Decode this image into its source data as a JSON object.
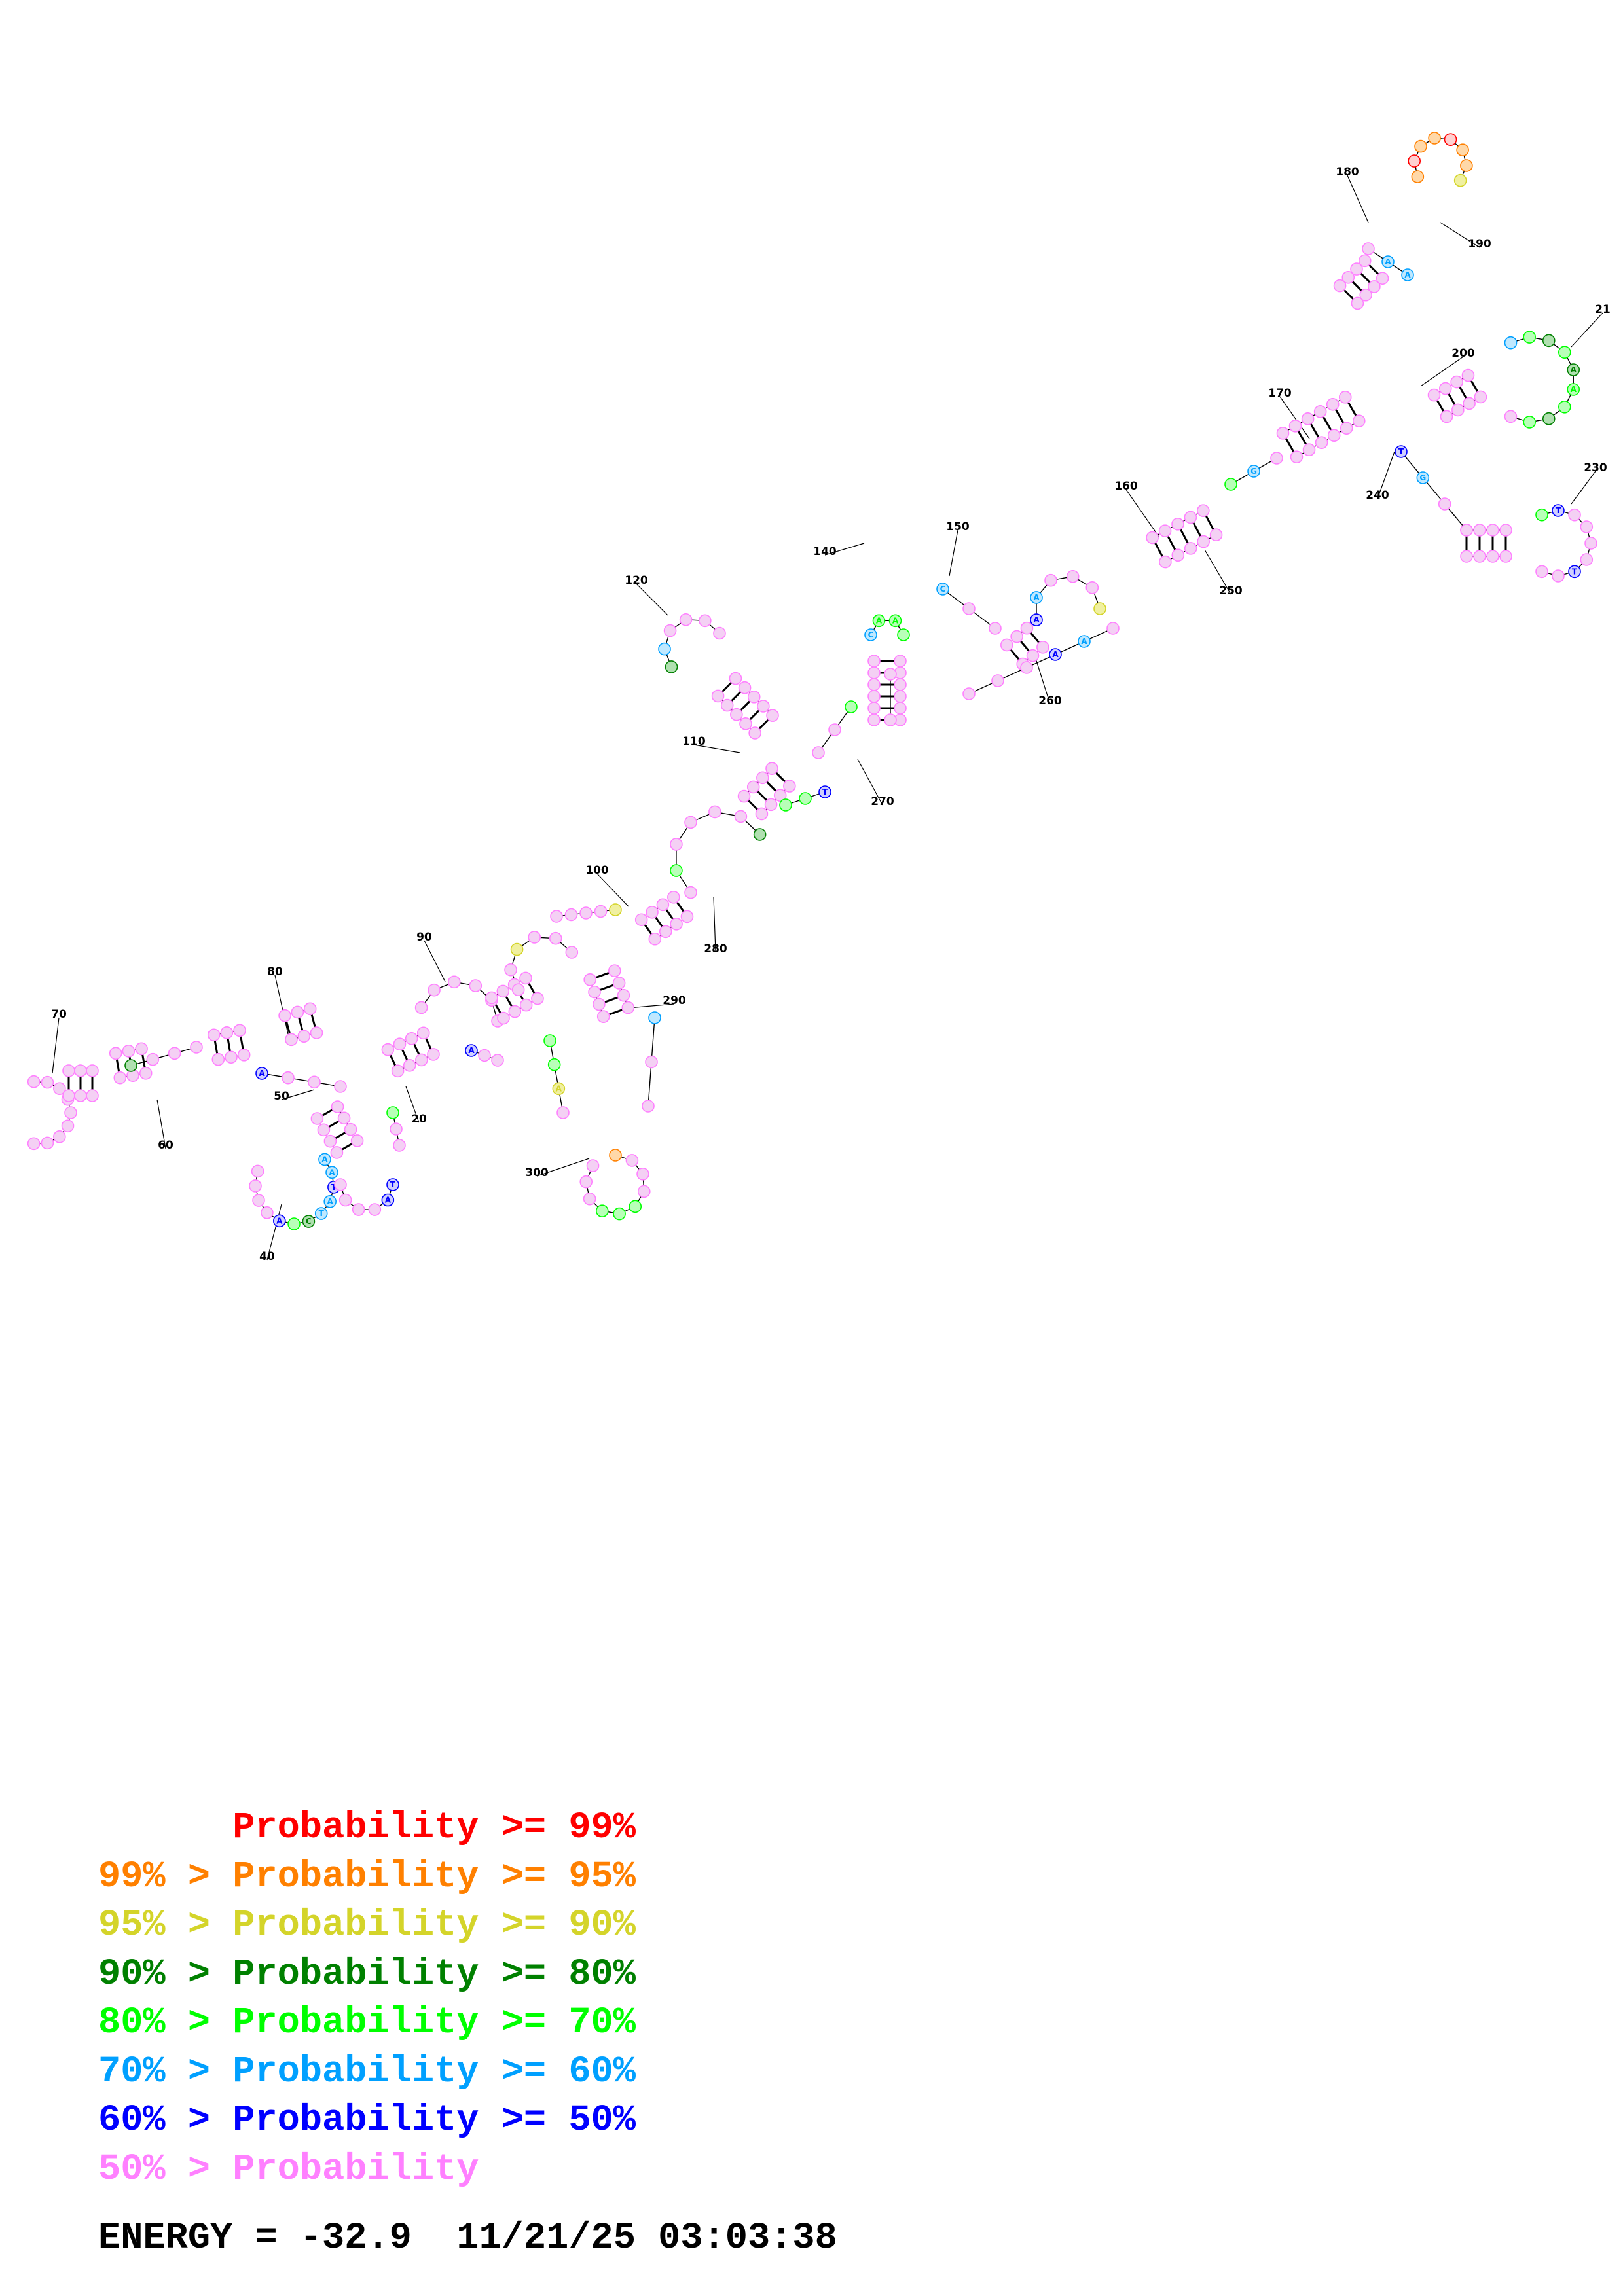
{
  "legend": {
    "lines": [
      {
        "prefix": "",
        "mid": "Probability >= 99%",
        "color": "#ff0000"
      },
      {
        "prefix": "99% > ",
        "mid": "Probability >= 95%",
        "color": "#ff8000"
      },
      {
        "prefix": "95% > ",
        "mid": "Probability >= 90%",
        "color": "#d4d42a"
      },
      {
        "prefix": "90% > ",
        "mid": "Probability >= 80%",
        "color": "#008000"
      },
      {
        "prefix": "80% > ",
        "mid": "Probability >= 70%",
        "color": "#00ff00"
      },
      {
        "prefix": "70% > ",
        "mid": "Probability >= 60%",
        "color": "#00a0ff"
      },
      {
        "prefix": "60% > ",
        "mid": "Probability >= 50%",
        "color": "#0000ff"
      },
      {
        "prefix": "50% > ",
        "mid": "Probability",
        "color": "#ff80ff"
      }
    ],
    "energy_text": "ENERGY = -32.9  11/21/25 03:03:38"
  },
  "position_labels": [
    "20",
    "40",
    "50",
    "60",
    "70",
    "80",
    "90",
    "100",
    "110",
    "120",
    "140",
    "150",
    "160",
    "170",
    "180",
    "190",
    "200",
    "21",
    "230",
    "240",
    "250",
    "260",
    "270",
    "280",
    "290",
    "300"
  ],
  "probability_colors": {
    "red": "#ff0000",
    "orange": "#ff8000",
    "yellow": "#d4d42a",
    "dkgreen": "#008000",
    "green": "#00ff00",
    "cyan": "#00a0ff",
    "blue": "#0000ff",
    "pink": "#ff80ff"
  }
}
